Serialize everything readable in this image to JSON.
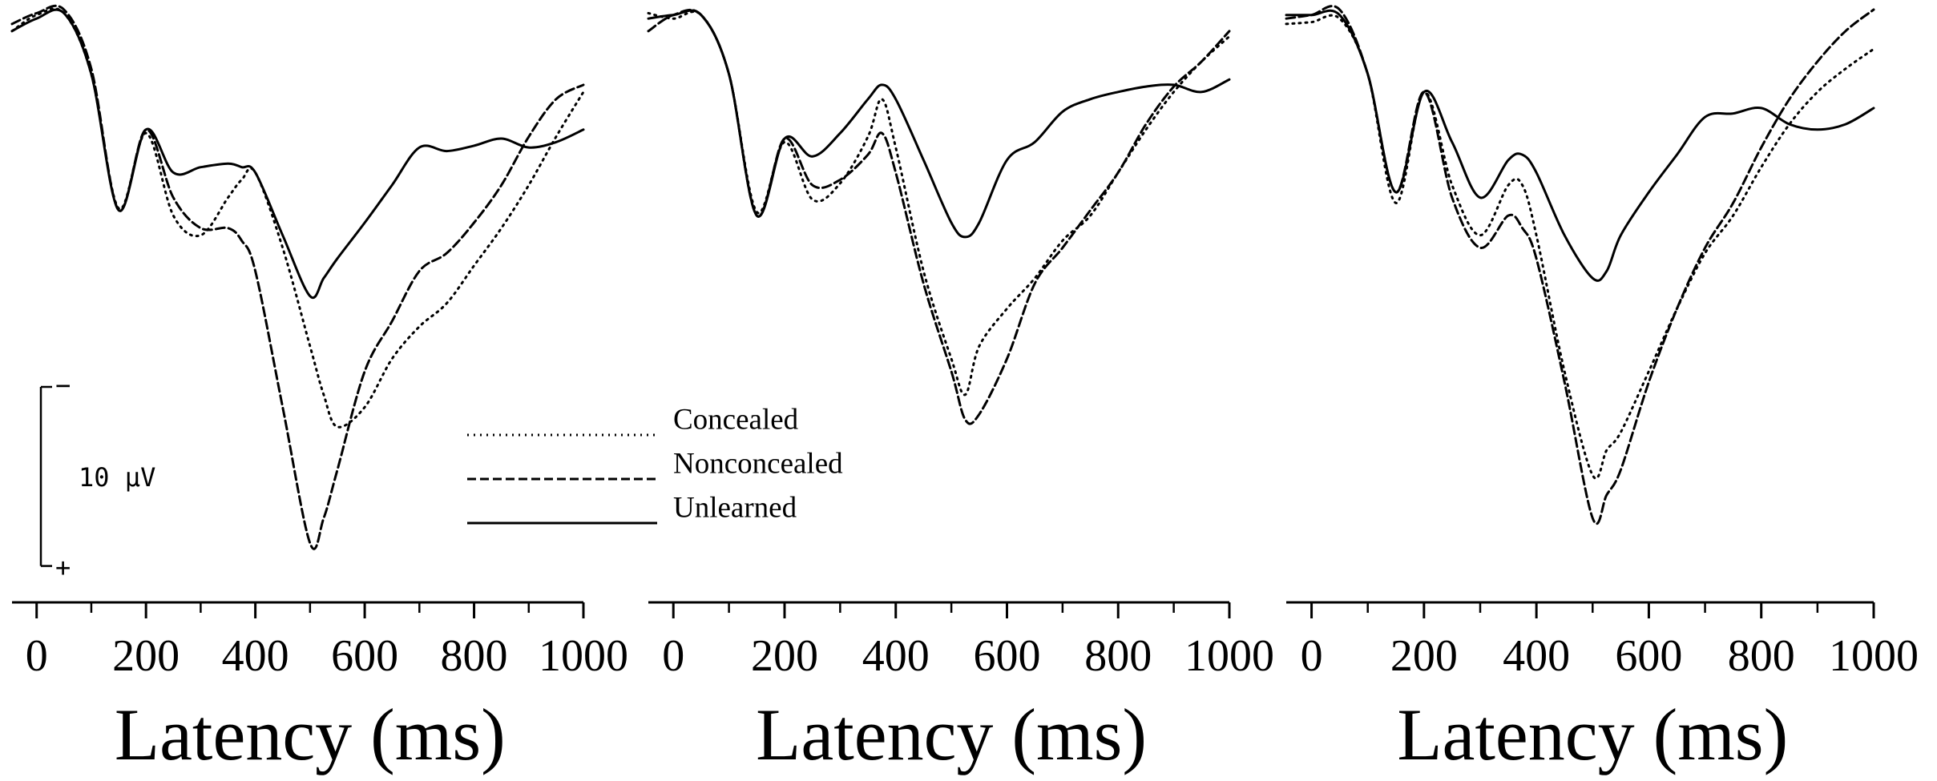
{
  "chart_data": [
    {
      "type": "line",
      "xlabel": "Latency (ms)",
      "x": [
        -45,
        0,
        50,
        100,
        150,
        200,
        250,
        300,
        350,
        375,
        400,
        450,
        500,
        525,
        550,
        600,
        650,
        700,
        750,
        800,
        850,
        900,
        950,
        1000
      ],
      "xlim": [
        -45,
        1000
      ],
      "xticks": [
        0,
        200,
        400,
        600,
        800,
        1000
      ],
      "xminor": [
        100,
        300,
        500,
        700,
        900
      ],
      "ylim": [
        -1,
        32.6
      ],
      "y_inverted": true,
      "scale_bar": {
        "value": 10,
        "label": "10 μV",
        "neg": "−",
        "pos": "+"
      },
      "series": [
        {
          "name": "Concealed",
          "style": "dotted",
          "color": "#000",
          "values": [
            0.7,
            -0.2,
            -0.3,
            3.1,
            10.6,
            6.4,
            11.0,
            12.1,
            10.0,
            9.0,
            8.6,
            12.8,
            18.3,
            21.0,
            22.8,
            21.7,
            19.0,
            17.2,
            15.9,
            13.8,
            11.7,
            9.3,
            6.6,
            4.1
          ]
        },
        {
          "name": "Nonconcealed",
          "style": "dashed",
          "color": "#000",
          "values": [
            0.3,
            -0.3,
            -0.5,
            2.8,
            10.7,
            6.2,
            10.0,
            11.7,
            11.7,
            12.4,
            14.1,
            21.7,
            29.3,
            27.9,
            25.2,
            19.7,
            16.9,
            14.1,
            13.1,
            11.4,
            9.3,
            6.6,
            4.5,
            3.7
          ]
        },
        {
          "name": "Unlearned",
          "style": "solid",
          "color": "#000",
          "values": [
            0.7,
            0,
            -0.3,
            3.1,
            10.7,
            6.2,
            8.6,
            8.3,
            8.1,
            8.3,
            8.6,
            12.1,
            15.5,
            14.5,
            13.4,
            11.4,
            9.3,
            7.2,
            7.4,
            7.1,
            6.7,
            7.2,
            6.9,
            6.2
          ]
        }
      ]
    },
    {
      "type": "line",
      "xlabel": "Latency (ms)",
      "x": [
        -45,
        0,
        50,
        100,
        150,
        200,
        250,
        300,
        350,
        375,
        400,
        450,
        500,
        525,
        550,
        600,
        650,
        700,
        750,
        800,
        850,
        900,
        950,
        1000
      ],
      "xlim": [
        -45,
        1000
      ],
      "xticks": [
        0,
        200,
        400,
        600,
        800,
        1000
      ],
      "xminor": [
        100,
        300,
        500,
        700,
        900
      ],
      "ylim": [
        -1,
        32.6
      ],
      "y_inverted": true,
      "series": [
        {
          "style": "dotted",
          "color": "#000",
          "values": [
            -0.3,
            0,
            -0.2,
            3.1,
            10.8,
            6.9,
            10.1,
            9.2,
            6.6,
            4.5,
            7.2,
            14.1,
            19.0,
            21.0,
            18.3,
            16.2,
            14.5,
            12.4,
            11.0,
            8.6,
            6.2,
            4.1,
            2.4,
            1.0
          ]
        },
        {
          "style": "dashed",
          "color": "#000",
          "values": [
            0.7,
            -0.2,
            -0.2,
            3.1,
            11.0,
            6.7,
            9.3,
            9.0,
            7.6,
            6.4,
            8.6,
            14.8,
            19.7,
            22.4,
            22.1,
            19.0,
            14.8,
            12.8,
            10.7,
            8.6,
            5.9,
            3.8,
            2.4,
            0.7
          ]
        },
        {
          "style": "solid",
          "color": "#000",
          "values": [
            0,
            -0.2,
            -0.2,
            3.1,
            11.0,
            6.7,
            7.7,
            6.4,
            4.5,
            3.7,
            4.5,
            7.9,
            11.4,
            12.2,
            11.4,
            7.9,
            6.9,
            5.2,
            4.5,
            4.1,
            3.8,
            3.7,
            4.1,
            3.4
          ]
        }
      ]
    },
    {
      "type": "line",
      "xlabel": "Latency (ms)",
      "x": [
        -45,
        0,
        50,
        100,
        150,
        200,
        250,
        300,
        350,
        375,
        400,
        450,
        500,
        525,
        550,
        600,
        650,
        700,
        750,
        800,
        850,
        900,
        950,
        1000
      ],
      "xlim": [
        -45,
        1000
      ],
      "xticks": [
        0,
        200,
        400,
        600,
        800,
        1000
      ],
      "xminor": [
        100,
        300,
        500,
        700,
        900
      ],
      "ylim": [
        -1,
        32.6
      ],
      "y_inverted": true,
      "series": [
        {
          "style": "dotted",
          "color": "#000",
          "values": [
            0.3,
            0.2,
            0,
            3.1,
            10.3,
            4.1,
            9.3,
            12.1,
            9.3,
            9.3,
            12.1,
            19.7,
            25.5,
            24.1,
            23.1,
            19.7,
            16.2,
            13.1,
            11.0,
            8.3,
            5.9,
            4.1,
            2.8,
            1.7
          ]
        },
        {
          "style": "dashed",
          "color": "#000",
          "values": [
            0,
            -0.2,
            -0.5,
            3.1,
            9.7,
            4.1,
            10.0,
            12.8,
            11.0,
            11.7,
            13.4,
            20.3,
            27.9,
            26.6,
            25.2,
            20.3,
            16.2,
            12.8,
            10.3,
            7.2,
            4.5,
            2.4,
            0.7,
            -0.5
          ]
        },
        {
          "style": "solid",
          "color": "#000",
          "values": [
            -0.2,
            -0.2,
            -0.2,
            3.1,
            9.7,
            4.1,
            6.9,
            10.0,
            7.9,
            7.6,
            8.6,
            12.1,
            14.5,
            14.1,
            12.1,
            9.7,
            7.6,
            5.5,
            5.3,
            5.0,
            5.9,
            6.2,
            5.9,
            5.0
          ]
        }
      ]
    }
  ]
}
